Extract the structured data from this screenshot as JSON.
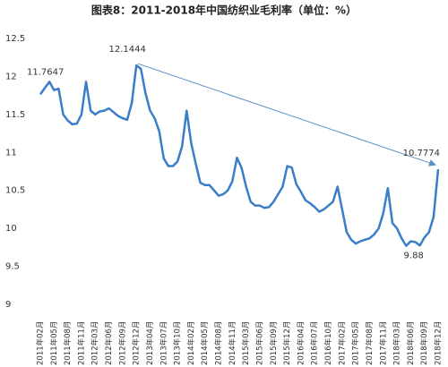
{
  "chart_data": {
    "type": "line",
    "title": "图表8：2011-2018年中国纺织业毛利率（单位：%）",
    "categories": [
      "2011年02月",
      null,
      null,
      "2011年05月",
      null,
      null,
      "2011年08月",
      null,
      null,
      "2011年11月",
      null,
      null,
      "2012年03月",
      null,
      null,
      "2012年06月",
      null,
      null,
      "2012年09月",
      null,
      null,
      "2012年12月",
      null,
      null,
      "2013年04月",
      null,
      null,
      "2013年07月",
      null,
      null,
      "2013年10月",
      null,
      null,
      "2014年02月",
      null,
      null,
      "2014年05月",
      null,
      null,
      "2014年08月",
      null,
      null,
      "2014年11月",
      null,
      null,
      "2015年03月",
      null,
      null,
      "2015年06月",
      null,
      null,
      "2015年09月",
      null,
      null,
      "2015年12月",
      null,
      null,
      "2016年04月",
      null,
      null,
      "2016年07月",
      null,
      null,
      "2016年10月",
      null,
      null,
      "2017年02月",
      null,
      null,
      "2017年05月",
      null,
      null,
      "2017年08月",
      null,
      null,
      "2017年11月",
      null,
      null,
      "2018年03月",
      null,
      null,
      "2018年06月",
      null,
      null,
      "2018年09月",
      null,
      null,
      "2018年12月"
    ],
    "series": [
      {
        "color": "#3a7dc9",
        "values": [
          11.7647,
          11.85,
          11.93,
          11.82,
          11.84,
          11.5,
          11.42,
          11.37,
          11.38,
          11.5,
          11.93,
          11.55,
          11.5,
          11.54,
          11.55,
          11.58,
          11.53,
          11.48,
          11.45,
          11.43,
          11.65,
          12.1444,
          12.1,
          11.78,
          11.55,
          11.45,
          11.28,
          10.92,
          10.82,
          10.82,
          10.88,
          11.08,
          11.55,
          11.12,
          10.85,
          10.6,
          10.57,
          10.57,
          10.5,
          10.43,
          10.45,
          10.5,
          10.62,
          10.93,
          10.8,
          10.55,
          10.35,
          10.3,
          10.3,
          10.27,
          10.28,
          10.35,
          10.45,
          10.55,
          10.82,
          10.8,
          10.58,
          10.48,
          10.37,
          10.33,
          10.28,
          10.22,
          10.25,
          10.3,
          10.35,
          10.55,
          10.25,
          9.95,
          9.85,
          9.8,
          9.83,
          9.85,
          9.87,
          9.92,
          10.0,
          10.2,
          10.53,
          10.07,
          10.0,
          9.87,
          9.77,
          9.83,
          9.82,
          9.7742,
          9.88,
          9.95,
          10.15,
          10.7774
        ]
      }
    ],
    "ylim": [
      9,
      12.5
    ],
    "yticks": [
      9,
      9.5,
      10,
      10.5,
      11,
      11.5,
      12,
      12.5
    ],
    "trend_color": "#5b8fc9"
  }
}
